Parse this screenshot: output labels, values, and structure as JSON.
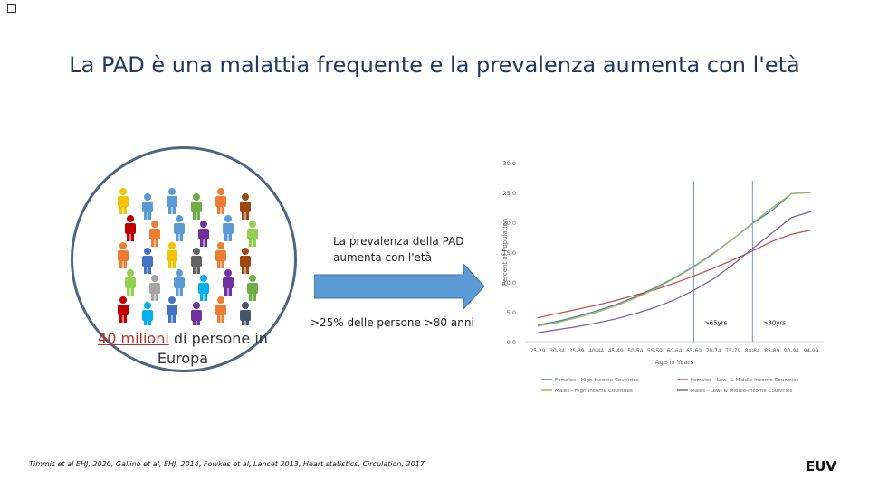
{
  "slide": {
    "title": "La PAD è una malattia frequente e la prevalenza aumenta con l'età",
    "left_caption_highlight": "40 milioni",
    "left_caption_rest": "di persone in Europa",
    "arrow_text": "La prevalenza della PAD aumenta con l'età",
    "stat_text": ">25% delle persone >80 anni",
    "footnote": "Timmis et al EHJ, 2020, Gallino et al, EHJ, 2014, Fowkes et al, Lancet 2013, Heart statistics, Circulation, 2017",
    "logo_text": "EUV"
  },
  "people_icons": [
    {
      "color": "#f2c300"
    },
    {
      "color": "#5b9bd5"
    },
    {
      "color": "#5b9bd5"
    },
    {
      "color": "#70ad47"
    },
    {
      "color": "#ed7d31"
    },
    {
      "color": "#9e480e"
    },
    {
      "color": "#c00000"
    },
    {
      "color": "#ed7d31"
    },
    {
      "color": "#5b9bd5"
    },
    {
      "color": "#7030a0"
    },
    {
      "color": "#5b9bd5"
    },
    {
      "color": "#92d050"
    },
    {
      "color": "#ed7d31"
    },
    {
      "color": "#4472c4"
    },
    {
      "color": "#f2c300"
    },
    {
      "color": "#636363"
    },
    {
      "color": "#ed7d31"
    },
    {
      "color": "#9e480e"
    },
    {
      "color": "#92d050"
    },
    {
      "color": "#a5a5a5"
    },
    {
      "color": "#5b9bd5"
    },
    {
      "color": "#00b0f0"
    },
    {
      "color": "#7030a0"
    },
    {
      "color": "#70ad47"
    },
    {
      "color": "#c00000"
    },
    {
      "color": "#00b0f0"
    },
    {
      "color": "#4472c4"
    },
    {
      "color": "#7030a0"
    },
    {
      "color": "#ed7d31"
    },
    {
      "color": "#44546a"
    }
  ],
  "chart_data": {
    "type": "line",
    "ylabel": "Percent of Population",
    "xlabel": "Age in Years",
    "ylim": [
      0,
      30
    ],
    "yticks": [
      "0.0",
      "5.0",
      "10.0",
      "15.0",
      "20.0",
      "25.0",
      "30.0"
    ],
    "categories": [
      "25-29",
      "30-34",
      "35-39",
      "40-44",
      "45-49",
      "50-54",
      "55-59",
      "60-64",
      "65-69",
      "70-74",
      "75-79",
      "80-84",
      "85-89",
      "90-94",
      "94-99"
    ],
    "series": [
      {
        "name": "Females - High-Income Countries",
        "color": "#4f81bd",
        "values": [
          2.8,
          3.4,
          4.2,
          5.1,
          6.2,
          7.5,
          9.0,
          10.7,
          12.6,
          14.8,
          17.2,
          19.8,
          22.0,
          24.8,
          25.0
        ]
      },
      {
        "name": "Females - Low- & Middle-Income Countries",
        "color": "#c0504d",
        "values": [
          4.0,
          4.7,
          5.4,
          6.1,
          6.9,
          7.8,
          8.7,
          9.8,
          11.0,
          12.3,
          13.7,
          15.2,
          16.8,
          18.0,
          18.7
        ]
      },
      {
        "name": "Males - High-Income Countries",
        "color": "#9bbb59",
        "values": [
          2.6,
          3.2,
          4.0,
          4.9,
          6.0,
          7.3,
          8.8,
          10.6,
          12.5,
          14.7,
          17.2,
          19.9,
          22.4,
          24.8,
          25.0
        ]
      },
      {
        "name": "Males - Low- & Middle-Income Countries",
        "color": "#8064a2",
        "values": [
          1.5,
          2.0,
          2.5,
          3.1,
          3.8,
          4.7,
          5.7,
          7.0,
          8.6,
          10.5,
          12.9,
          15.6,
          18.2,
          20.8,
          21.8
        ]
      }
    ],
    "annotations": [
      {
        "text": ">65yrs",
        "at_category": "65-69"
      },
      {
        "text": ">80yrs",
        "at_category": "80-84"
      }
    ]
  }
}
